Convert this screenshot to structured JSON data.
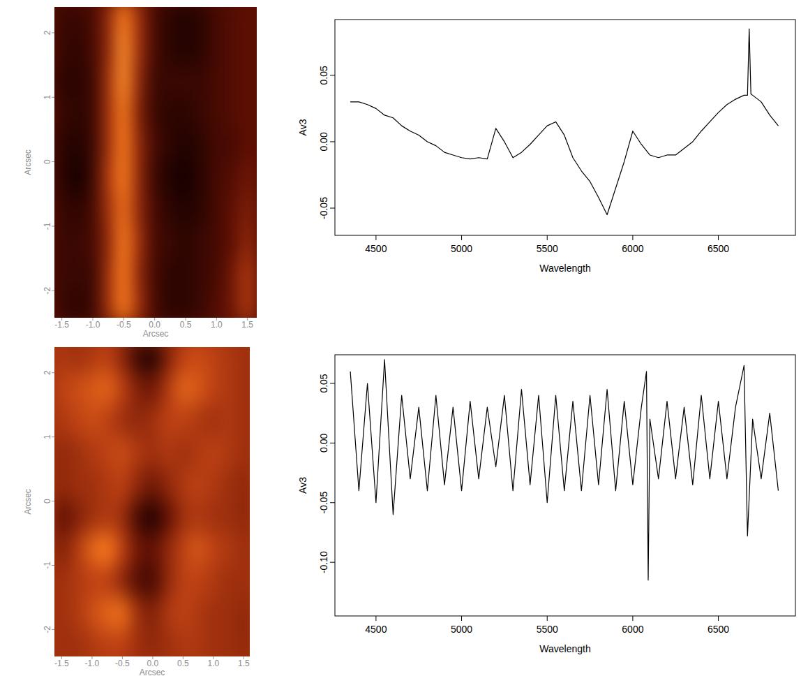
{
  "chart_data": [
    {
      "type": "heatmap",
      "x_label": "Arcsec",
      "y_label": "Arcsec",
      "xlim": [
        -1.62,
        1.65
      ],
      "ylim": [
        -2.42,
        2.4
      ],
      "xticks": [
        {
          "value": -1.5,
          "label": "-1.5"
        },
        {
          "value": -1,
          "label": "-1.0"
        },
        -0.5,
        {
          "value": 0,
          "label": "0.0"
        },
        0.5,
        {
          "value": 1,
          "label": "1.0"
        },
        1.5
      ],
      "yticks": [
        -2,
        -1,
        0,
        1,
        2
      ],
      "zlim": [
        0,
        1
      ],
      "x": [
        -1.5,
        -1.25,
        -1,
        -0.75,
        -0.5,
        -0.25,
        0,
        0.25,
        0.5,
        0.75,
        1,
        1.25,
        1.5
      ],
      "y": [
        2.25,
        1.75,
        1.25,
        0.75,
        0.25,
        -0.25,
        -0.75,
        -1.25,
        -1.75,
        -2.25
      ],
      "values": [
        [
          0.15,
          0.15,
          0.2,
          0.45,
          0.85,
          0.5,
          0.2,
          0.1,
          0.05,
          0.1,
          0.2,
          0.25,
          0.3
        ],
        [
          0.15,
          0.1,
          0.2,
          0.45,
          0.9,
          0.5,
          0.2,
          0.1,
          0.05,
          0.1,
          0.2,
          0.25,
          0.3
        ],
        [
          0.1,
          0.1,
          0.15,
          0.5,
          0.9,
          0.45,
          0.15,
          0.15,
          0.15,
          0.15,
          0.2,
          0.25,
          0.3
        ],
        [
          0.15,
          0.1,
          0.15,
          0.5,
          0.85,
          0.4,
          0.15,
          0.1,
          0.1,
          0.15,
          0.2,
          0.25,
          0.3
        ],
        [
          0.1,
          0.05,
          0.15,
          0.5,
          0.85,
          0.45,
          0.2,
          0.1,
          0.05,
          0.1,
          0.2,
          0.2,
          0.3
        ],
        [
          0.1,
          0.0,
          0.15,
          0.55,
          0.85,
          0.45,
          0.15,
          0.05,
          0.0,
          0.1,
          0.2,
          0.25,
          0.35
        ],
        [
          0.15,
          0.1,
          0.2,
          0.5,
          0.8,
          0.45,
          0.2,
          0.1,
          0.05,
          0.1,
          0.2,
          0.3,
          0.4
        ],
        [
          0.15,
          0.15,
          0.2,
          0.45,
          0.85,
          0.5,
          0.2,
          0.15,
          0.1,
          0.15,
          0.2,
          0.3,
          0.45
        ],
        [
          0.15,
          0.15,
          0.15,
          0.5,
          0.85,
          0.45,
          0.2,
          0.1,
          0.1,
          0.15,
          0.2,
          0.35,
          0.55
        ],
        [
          0.15,
          0.1,
          0.15,
          0.5,
          0.85,
          0.5,
          0.2,
          0.1,
          0.1,
          0.15,
          0.25,
          0.35,
          0.55
        ]
      ]
    },
    {
      "type": "line",
      "x_label": "Wavelength",
      "y_label": "Av3",
      "xlim": [
        4260,
        6950
      ],
      "ylim": [
        -0.0705,
        0.092
      ],
      "xticks": [
        4500,
        5000,
        5500,
        6000,
        6500
      ],
      "yticks": [
        -0.05,
        {
          "value": 0,
          "label": "0.00"
        },
        0.05
      ],
      "color": "#000000",
      "x": [
        4350,
        4400,
        4450,
        4500,
        4550,
        4600,
        4650,
        4700,
        4750,
        4800,
        4850,
        4900,
        4950,
        5000,
        5050,
        5100,
        5150,
        5200,
        5250,
        5300,
        5350,
        5400,
        5450,
        5500,
        5550,
        5600,
        5650,
        5700,
        5750,
        5800,
        5850,
        5900,
        5950,
        6000,
        6050,
        6100,
        6150,
        6200,
        6250,
        6300,
        6350,
        6400,
        6450,
        6500,
        6550,
        6600,
        6650,
        6670,
        6680,
        6690,
        6700,
        6750,
        6800,
        6850
      ],
      "values": [
        0.03,
        0.03,
        0.028,
        0.025,
        0.02,
        0.018,
        0.012,
        0.008,
        0.005,
        0.0,
        -0.003,
        -0.008,
        -0.01,
        -0.012,
        -0.013,
        -0.012,
        -0.013,
        0.01,
        0.0,
        -0.012,
        -0.008,
        -0.002,
        0.005,
        0.012,
        0.015,
        0.005,
        -0.012,
        -0.022,
        -0.03,
        -0.042,
        -0.055,
        -0.035,
        -0.015,
        0.008,
        -0.002,
        -0.01,
        -0.012,
        -0.01,
        -0.01,
        -0.005,
        0.0,
        0.008,
        0.015,
        0.022,
        0.028,
        0.032,
        0.035,
        0.035,
        0.085,
        0.036,
        0.035,
        0.03,
        0.02,
        0.012
      ]
    },
    {
      "type": "heatmap",
      "x_label": "Arcsec",
      "y_label": "Arcsec",
      "xlim": [
        -1.62,
        1.6
      ],
      "ylim": [
        -2.42,
        2.4
      ],
      "xticks": [
        {
          "value": -1.5,
          "label": "-1.5"
        },
        {
          "value": -1,
          "label": "-1.0"
        },
        -0.5,
        {
          "value": 0,
          "label": "0.0"
        },
        0.5,
        {
          "value": 1,
          "label": "1.0"
        },
        1.5
      ],
      "yticks": [
        -2,
        -1,
        0,
        1,
        2
      ],
      "zlim": [
        0,
        1
      ],
      "x": [
        -1.5,
        -1.25,
        -1,
        -0.75,
        -0.5,
        -0.25,
        0,
        0.25,
        0.5,
        0.75,
        1,
        1.25,
        1.5
      ],
      "y": [
        2.25,
        1.75,
        1.25,
        0.75,
        0.25,
        -0.25,
        -0.75,
        -1.25,
        -1.75,
        -2.25
      ],
      "values": [
        [
          0.55,
          0.5,
          0.55,
          0.6,
          0.45,
          0.15,
          0.05,
          0.4,
          0.6,
          0.65,
          0.6,
          0.55,
          0.5
        ],
        [
          0.6,
          0.65,
          0.7,
          0.75,
          0.6,
          0.4,
          0.35,
          0.55,
          0.75,
          0.7,
          0.6,
          0.55,
          0.5
        ],
        [
          0.55,
          0.6,
          0.65,
          0.6,
          0.5,
          0.45,
          0.5,
          0.6,
          0.6,
          0.55,
          0.5,
          0.55,
          0.5
        ],
        [
          0.45,
          0.5,
          0.55,
          0.6,
          0.65,
          0.55,
          0.5,
          0.55,
          0.5,
          0.55,
          0.6,
          0.55,
          0.5
        ],
        [
          0.45,
          0.5,
          0.5,
          0.55,
          0.6,
          0.45,
          0.35,
          0.45,
          0.55,
          0.6,
          0.55,
          0.5,
          0.45
        ],
        [
          0.3,
          0.4,
          0.5,
          0.55,
          0.5,
          0.2,
          0.05,
          0.3,
          0.5,
          0.55,
          0.5,
          0.5,
          0.45
        ],
        [
          0.4,
          0.55,
          0.75,
          0.85,
          0.6,
          0.35,
          0.3,
          0.45,
          0.6,
          0.7,
          0.6,
          0.55,
          0.5
        ],
        [
          0.5,
          0.55,
          0.6,
          0.6,
          0.45,
          0.25,
          0.2,
          0.45,
          0.6,
          0.6,
          0.55,
          0.5,
          0.5
        ],
        [
          0.5,
          0.55,
          0.65,
          0.75,
          0.8,
          0.5,
          0.4,
          0.55,
          0.6,
          0.55,
          0.5,
          0.5,
          0.45
        ],
        [
          0.5,
          0.5,
          0.55,
          0.6,
          0.6,
          0.5,
          0.45,
          0.5,
          0.55,
          0.55,
          0.5,
          0.5,
          0.45
        ]
      ]
    },
    {
      "type": "line",
      "x_label": "Wavelength",
      "y_label": "Av3",
      "xlim": [
        4260,
        6950
      ],
      "ylim": [
        -0.145,
        0.074
      ],
      "xticks": [
        4500,
        5000,
        5500,
        6000,
        6500
      ],
      "yticks": [
        {
          "value": -0.1,
          "label": "-0.10"
        },
        -0.05,
        {
          "value": 0,
          "label": "0.00"
        },
        0.05
      ],
      "color": "#000000",
      "x": [
        4350,
        4400,
        4450,
        4500,
        4550,
        4600,
        4650,
        4700,
        4750,
        4800,
        4850,
        4900,
        4950,
        5000,
        5050,
        5100,
        5150,
        5200,
        5250,
        5300,
        5350,
        5400,
        5450,
        5500,
        5550,
        5600,
        5650,
        5700,
        5750,
        5800,
        5850,
        5900,
        5950,
        6000,
        6050,
        6080,
        6090,
        6100,
        6150,
        6200,
        6250,
        6300,
        6350,
        6400,
        6450,
        6500,
        6550,
        6600,
        6650,
        6670,
        6700,
        6750,
        6800,
        6850
      ],
      "values": [
        0.06,
        -0.04,
        0.05,
        -0.05,
        0.07,
        -0.06,
        0.04,
        -0.03,
        0.03,
        -0.04,
        0.04,
        -0.035,
        0.03,
        -0.04,
        0.035,
        -0.03,
        0.03,
        -0.02,
        0.04,
        -0.04,
        0.045,
        -0.035,
        0.04,
        -0.05,
        0.04,
        -0.04,
        0.035,
        -0.04,
        0.04,
        -0.035,
        0.045,
        -0.04,
        0.035,
        -0.035,
        0.03,
        0.06,
        -0.115,
        0.02,
        -0.03,
        0.035,
        -0.03,
        0.03,
        -0.035,
        0.04,
        -0.03,
        0.035,
        -0.03,
        0.03,
        0.065,
        -0.078,
        0.02,
        -0.03,
        0.025,
        -0.04
      ]
    }
  ]
}
